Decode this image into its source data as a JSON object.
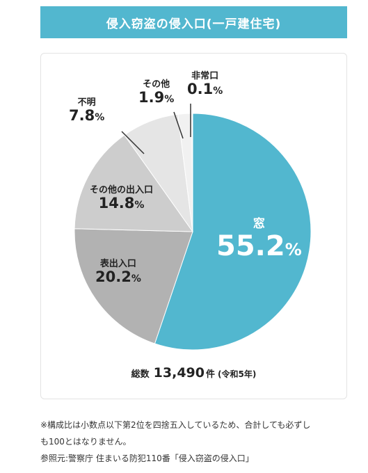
{
  "title": "侵入窃盗の侵入口(一戸建住宅)",
  "chart_data": {
    "type": "pie",
    "unit": "%",
    "slices": [
      {
        "name": "窓",
        "value": 55.2,
        "color": "#52b7cf"
      },
      {
        "name": "表出入口",
        "value": 20.2,
        "color": "#b2b2b2"
      },
      {
        "name": "その他の出入口",
        "value": 14.8,
        "color": "#cdcdcd"
      },
      {
        "name": "不明",
        "value": 7.8,
        "color": "#e5e5e5"
      },
      {
        "name": "その他",
        "value": 1.9,
        "color": "#f1f1f1"
      },
      {
        "name": "非常口",
        "value": 0.1,
        "color": "#f5f5f5"
      }
    ]
  },
  "total": {
    "label": "総数",
    "value": "13,490",
    "unit": "件",
    "period": "(令和5年)"
  },
  "notes": [
    "※構成比は小数点以下第2位を四捨五入しているため、合計しても必ずし",
    "も100とはなりません。",
    "参照元:警察庁 住まいる防犯110番「侵入窃盗の侵入口」"
  ]
}
